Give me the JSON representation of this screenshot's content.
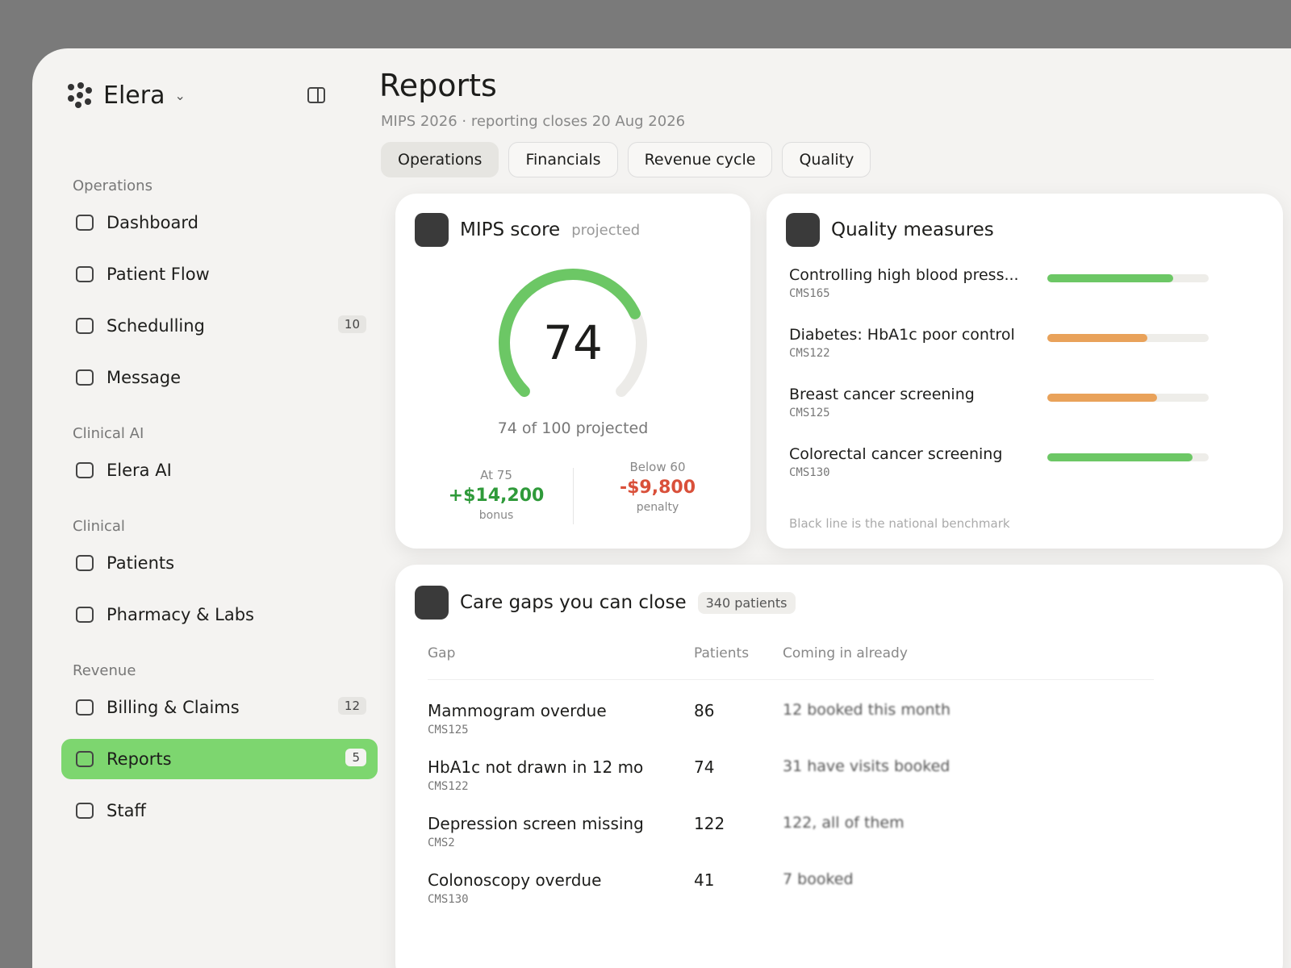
{
  "sidebar": {
    "brand": "Elera",
    "sections": [
      {
        "title": "Operations",
        "items": [
          {
            "label": "Dashboard"
          },
          {
            "label": "Patient Flow"
          },
          {
            "label": "Schedulling",
            "badge": 10
          },
          {
            "label": "Message"
          }
        ]
      },
      {
        "title": "Clinical AI",
        "items": [
          {
            "label": "Elera AI"
          }
        ]
      },
      {
        "title": "Clinical",
        "items": [
          {
            "label": "Patients"
          },
          {
            "label": "Pharmacy & Labs"
          }
        ]
      },
      {
        "title": "Revenue",
        "items": [
          {
            "label": "Billing & Claims",
            "badge": 12
          },
          {
            "label": "Reports",
            "badge": 5,
            "active": true
          },
          {
            "label": "Staff"
          }
        ]
      }
    ]
  },
  "header": {
    "title": "Reports",
    "subtitle": "MIPS 2026 · reporting closes 20 Aug 2026",
    "tabs": [
      "Operations",
      "Financials",
      "Revenue cycle",
      "Quality"
    ],
    "active_tab": 0
  },
  "mips": {
    "title": "MIPS score",
    "note": "projected",
    "score": 74,
    "max": 100,
    "caption": "74 of 100 projected",
    "bonus": {
      "label": "At 75",
      "amount": "+$14,200",
      "note": "bonus"
    },
    "penalty": {
      "label": "Below 60",
      "amount": "-$9,800",
      "note": "penalty"
    }
  },
  "quality": {
    "title": "Quality measures",
    "rows": [
      {
        "name": "Controlling high blood press...",
        "code": "CMS165",
        "progress": 78,
        "color": "#6cc765"
      },
      {
        "name": "Diabetes: HbA1c poor control",
        "code": "CMS122",
        "progress": 62,
        "color": "#e9a25a"
      },
      {
        "name": "Breast cancer screening",
        "code": "CMS125",
        "progress": 68,
        "color": "#e9a25a"
      },
      {
        "name": "Colorectal cancer screening",
        "code": "CMS130",
        "progress": 90,
        "color": "#6cc765"
      }
    ],
    "footnote": "Black line is the national benchmark"
  },
  "care_gaps": {
    "title": "Care gaps you can close",
    "count": "340 patients",
    "columns": [
      "Gap",
      "Patients",
      "Coming in already"
    ],
    "rows": [
      {
        "gap": "Mammogram overdue",
        "code": "CMS125",
        "patients": 86,
        "coming": "12 booked this month"
      },
      {
        "gap": "HbA1c not drawn in 12 mo",
        "code": "CMS122",
        "patients": 74,
        "coming": "31 have visits booked"
      },
      {
        "gap": "Depression screen missing",
        "code": "CMS2",
        "patients": 122,
        "coming": "122, all of them"
      },
      {
        "gap": "Colonoscopy overdue",
        "code": "CMS130",
        "patients": 41,
        "coming": "7 booked"
      }
    ]
  }
}
